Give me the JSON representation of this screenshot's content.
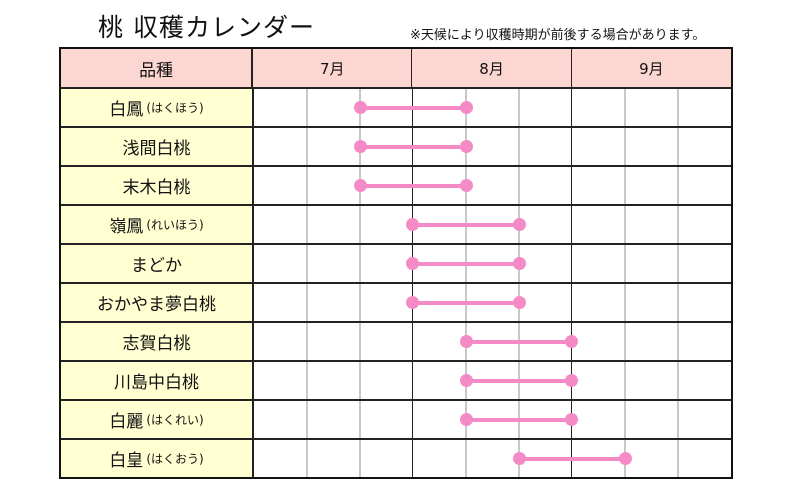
{
  "title": "桃 収穫カレンダー",
  "note": "※天候により収穫時期が前後する場合があります。",
  "chart_data": {
    "type": "gantt",
    "column_header": "品種",
    "months": [
      "7月",
      "8月",
      "9月"
    ],
    "periods_per_month": 3,
    "unit": "dekad index from July 1 (0=7月上旬 start, 3=8月上旬 start, 6=9月上旬 start)",
    "color": "#f58bc6",
    "rows": [
      {
        "name": "白鳳",
        "reading": "(はくほう)",
        "start": 2,
        "end": 4
      },
      {
        "name": "浅間白桃",
        "reading": "",
        "start": 2,
        "end": 4
      },
      {
        "name": "末木白桃",
        "reading": "",
        "start": 2,
        "end": 4
      },
      {
        "name": "嶺鳳",
        "reading": "(れいほう)",
        "start": 3,
        "end": 5
      },
      {
        "name": "まどか",
        "reading": "",
        "start": 3,
        "end": 5
      },
      {
        "name": "おかやま夢白桃",
        "reading": "",
        "start": 3,
        "end": 5
      },
      {
        "name": "志賀白桃",
        "reading": "",
        "start": 4,
        "end": 6
      },
      {
        "name": "川島中白桃",
        "reading": "",
        "start": 4,
        "end": 6
      },
      {
        "name": "白麗",
        "reading": "(はくれい)",
        "start": 4,
        "end": 6
      },
      {
        "name": "白皇",
        "reading": "(はくおう)",
        "start": 5,
        "end": 7
      }
    ]
  }
}
